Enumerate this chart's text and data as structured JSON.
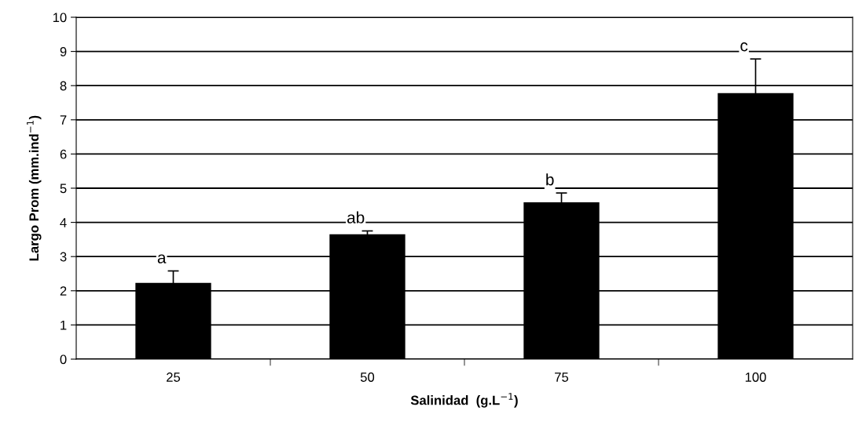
{
  "chart_data": {
    "type": "bar",
    "xlabel": "Salinidad  (g.L$^{−1}$)",
    "ylabel": "Largo Prom (mm.ind$^{−1}$)",
    "categories": [
      "25",
      "50",
      "75",
      "100"
    ],
    "values": [
      2.23,
      3.65,
      4.59,
      7.78
    ],
    "errors": [
      0.35,
      0.1,
      0.27,
      1.0
    ],
    "color": "#000000",
    "ylim": [
      0,
      10
    ],
    "yticks": [
      0,
      1,
      2,
      3,
      4,
      5,
      6,
      7,
      8,
      9,
      10
    ],
    "grid": "y",
    "annotations": [
      "a",
      "ab",
      "b",
      "c"
    ]
  }
}
